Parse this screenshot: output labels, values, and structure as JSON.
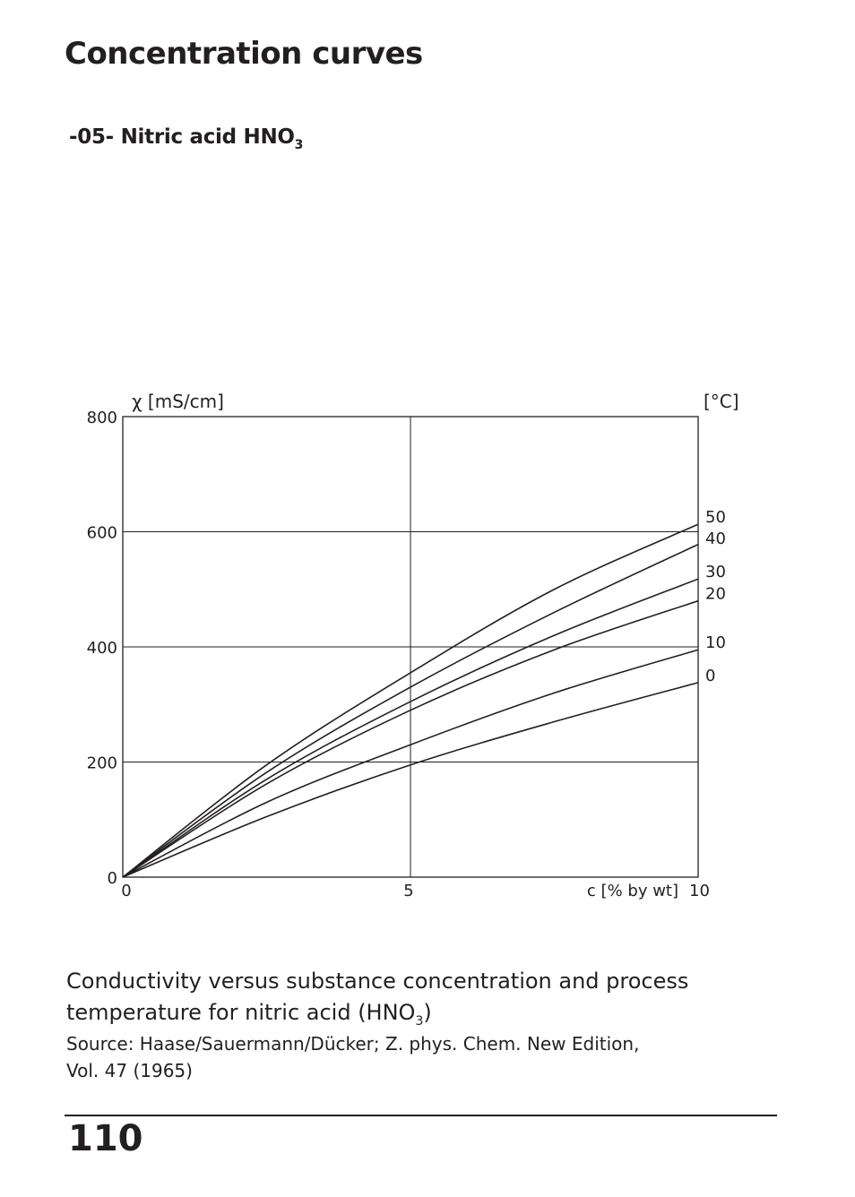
{
  "page": {
    "title": "Concentration curves",
    "section_title": "-05- Nitric acid HNO",
    "section_title_sub": "3",
    "caption_main": "Conductivity versus substance concentration and process temperature for nitric acid (HNO",
    "caption_sub": "3",
    "caption_end": ")",
    "source_line1": "Source: Haase/Sauermann/Dücker; Z. phys. Chem. New Edition,",
    "source_line2": "Vol. 47 (1965)",
    "page_number": "110"
  },
  "chart_data": {
    "type": "line",
    "title": "",
    "ylabel": "χ [mS/cm]",
    "xlabel": "c [% by wt]",
    "legend_title": "[°C]",
    "xlim": [
      0,
      10
    ],
    "ylim": [
      0,
      800
    ],
    "x_ticks": [
      "0",
      "5",
      "10"
    ],
    "y_ticks": [
      "0",
      "200",
      "400",
      "600",
      "800"
    ],
    "grid": true,
    "series": [
      {
        "name": "50",
        "x": [
          0,
          2.5,
          5,
          7.5,
          10
        ],
        "y": [
          0,
          195,
          355,
          500,
          613
        ]
      },
      {
        "name": "40",
        "x": [
          0,
          2.5,
          5,
          7.5,
          10
        ],
        "y": [
          0,
          182,
          330,
          460,
          578
        ]
      },
      {
        "name": "30",
        "x": [
          0,
          2.5,
          5,
          7.5,
          10
        ],
        "y": [
          0,
          170,
          305,
          420,
          518
        ]
      },
      {
        "name": "20",
        "x": [
          0,
          2.5,
          5,
          7.5,
          10
        ],
        "y": [
          0,
          162,
          290,
          395,
          480
        ]
      },
      {
        "name": "10",
        "x": [
          0,
          2.5,
          5,
          7.5,
          10
        ],
        "y": [
          0,
          130,
          230,
          320,
          395
        ]
      },
      {
        "name": "0",
        "x": [
          0,
          2.5,
          5,
          7.5,
          10
        ],
        "y": [
          0,
          105,
          195,
          270,
          338
        ]
      }
    ]
  }
}
